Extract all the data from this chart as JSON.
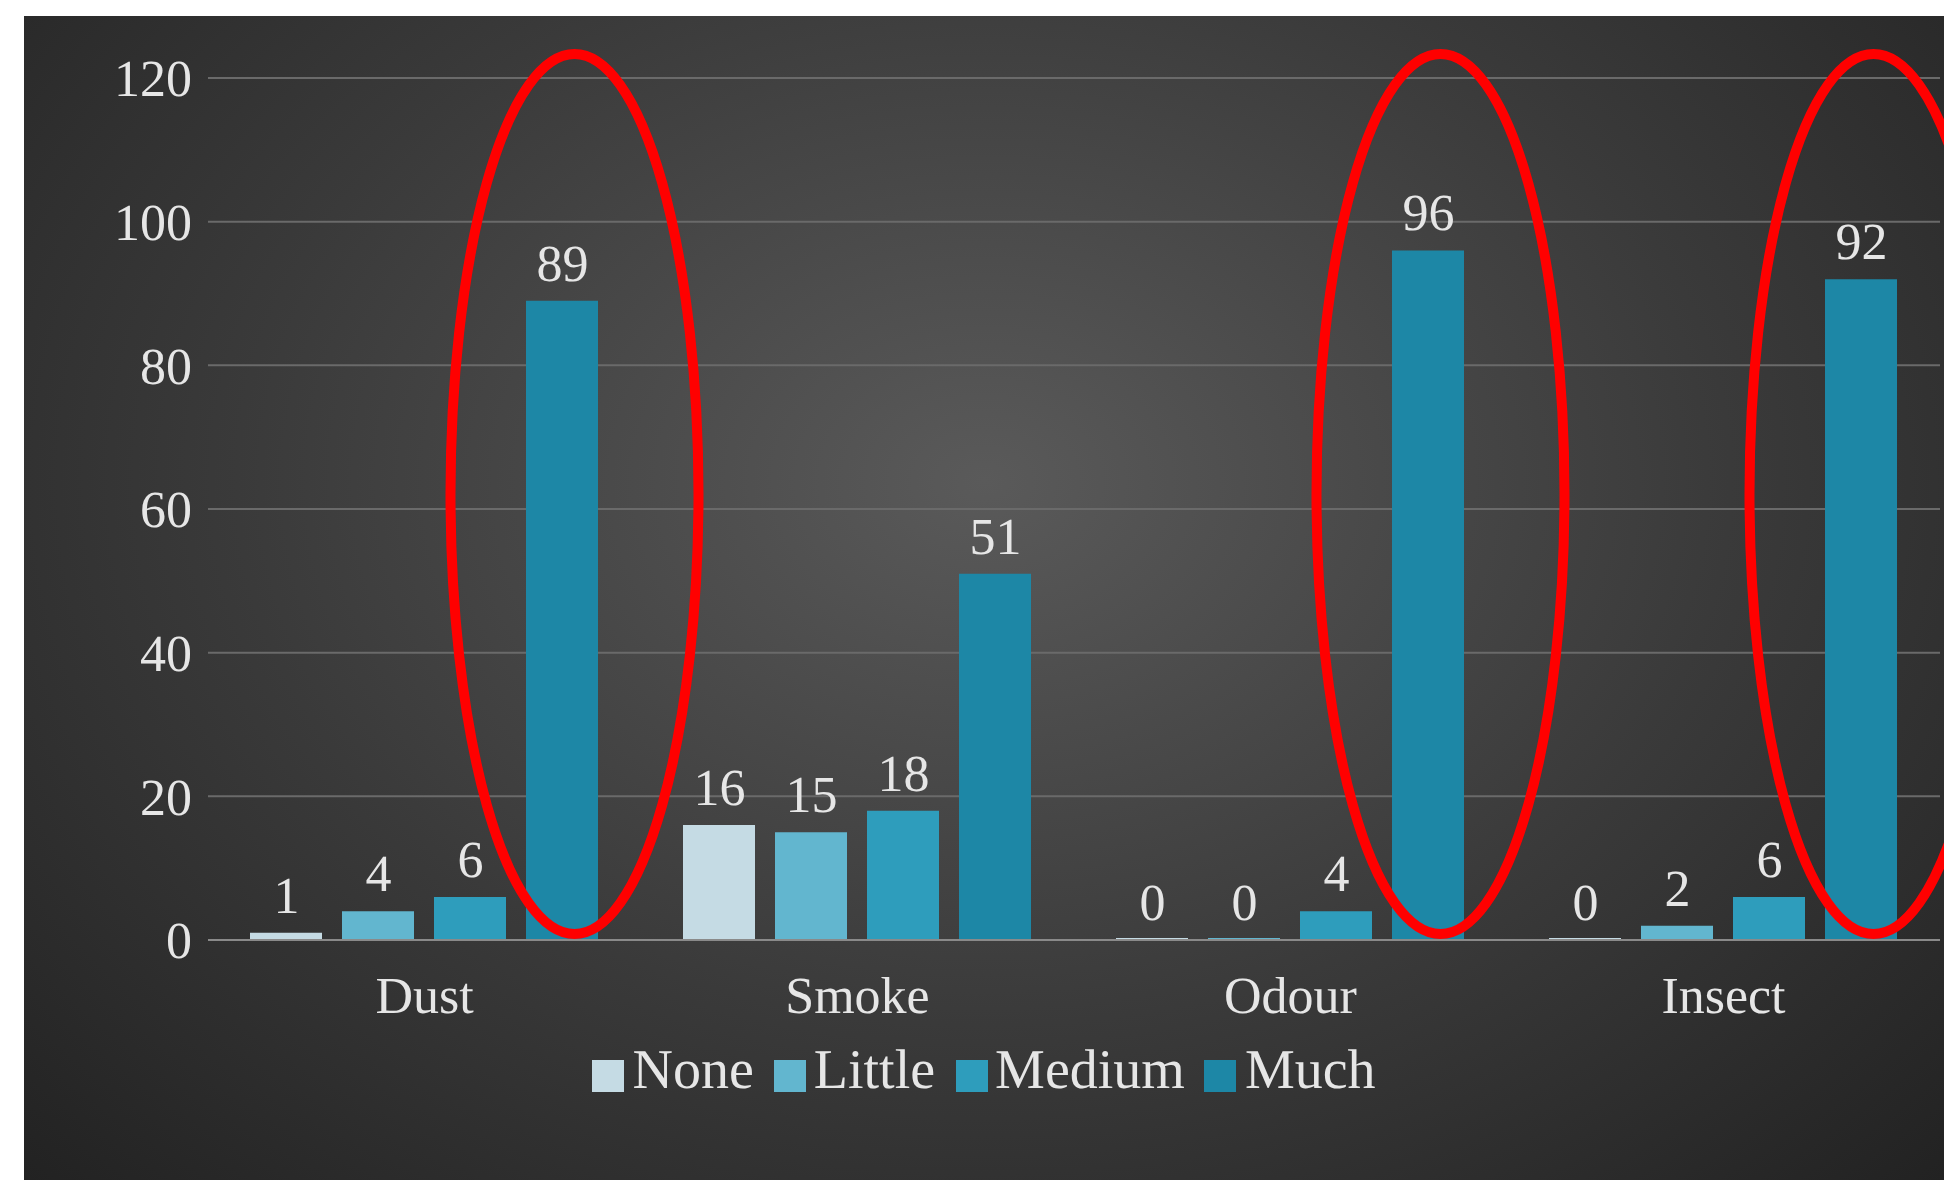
{
  "chart_data": {
    "type": "bar",
    "categories": [
      "Dust",
      "Smoke",
      "Odour",
      "Insect"
    ],
    "series": [
      {
        "name": "None",
        "color": "#c5dbe4",
        "values": [
          1,
          16,
          0,
          0
        ]
      },
      {
        "name": "Little",
        "color": "#62b6cf",
        "values": [
          4,
          15,
          0,
          2
        ]
      },
      {
        "name": "Medium",
        "color": "#2e9dbc",
        "values": [
          6,
          18,
          4,
          6
        ]
      },
      {
        "name": "Much",
        "color": "#1d87a6",
        "values": [
          89,
          51,
          96,
          92
        ]
      }
    ],
    "ylim": [
      0,
      120
    ],
    "yticks": [
      0,
      20,
      40,
      60,
      80,
      100,
      120
    ],
    "grid": "y",
    "legend": "bottom",
    "data_labels": true
  }
}
